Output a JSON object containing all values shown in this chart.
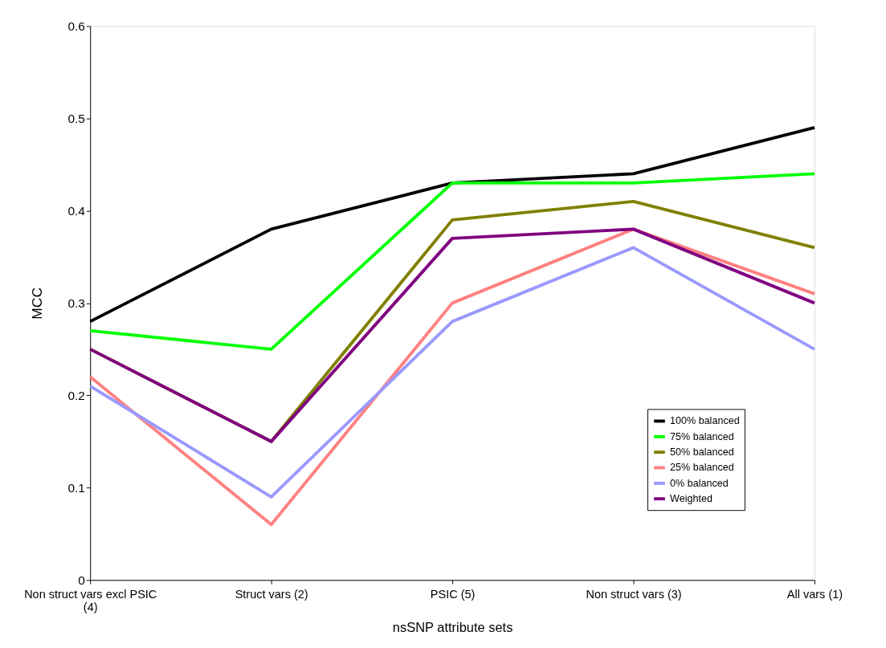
{
  "chart_data": {
    "type": "line",
    "xlabel": "nsSNP attribute sets",
    "ylabel": "MCC",
    "categories": [
      "Non struct vars excl PSIC (4)",
      "Struct vars (2)",
      "PSIC (5)",
      "Non struct vars (3)",
      "All vars (1)"
    ],
    "ylim": [
      0,
      0.6
    ],
    "yticks": [
      0,
      0.1,
      0.2,
      0.3,
      0.4,
      0.5,
      0.6
    ],
    "grid": false,
    "legend": "bottom right",
    "marker": "none",
    "line_style": "solid",
    "series": [
      {
        "name": "100% balanced",
        "color": "#000000",
        "values": [
          0.28,
          0.38,
          0.43,
          0.44,
          0.49
        ]
      },
      {
        "name": "75% balanced",
        "color": "#00ff00",
        "values": [
          0.27,
          0.25,
          0.43,
          0.43,
          0.44
        ]
      },
      {
        "name": "50% balanced",
        "color": "#808000",
        "values": [
          0.25,
          0.15,
          0.39,
          0.41,
          0.36
        ]
      },
      {
        "name": "25% balanced",
        "color": "#ff8080",
        "values": [
          0.22,
          0.06,
          0.3,
          0.38,
          0.31
        ]
      },
      {
        "name": "0% balanced",
        "color": "#9999ff",
        "values": [
          0.21,
          0.09,
          0.28,
          0.36,
          0.25
        ]
      },
      {
        "name": "Weighted",
        "color": "#800080",
        "values": [
          0.25,
          0.15,
          0.37,
          0.38,
          0.3
        ]
      }
    ]
  }
}
